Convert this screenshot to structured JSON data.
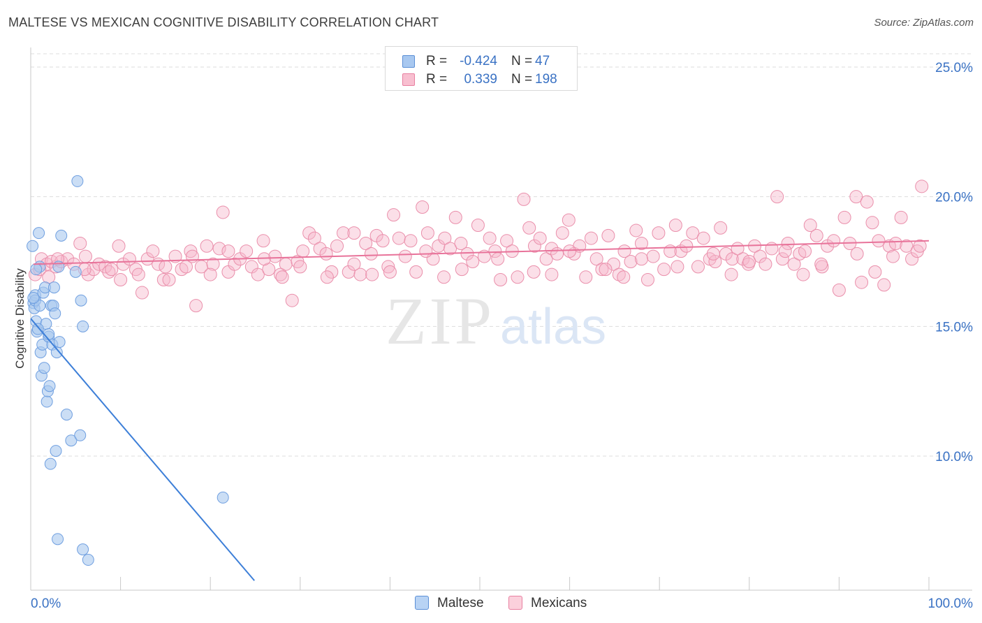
{
  "header": {
    "title": "MALTESE VS MEXICAN COGNITIVE DISABILITY CORRELATION CHART",
    "source": "Source: ZipAtlas.com"
  },
  "watermark": {
    "zip": "ZIP",
    "atlas": "atlas"
  },
  "legend_top": {
    "rows": [
      {
        "r_label": "R =",
        "r_value": "-0.424",
        "n_label": "N =",
        "n_value": "47",
        "color": "#a8c8f0",
        "border": "#5b8fd6"
      },
      {
        "r_label": "R =",
        "r_value": "0.339",
        "n_label": "N =",
        "n_value": "198",
        "color": "#f8bfd0",
        "border": "#e87fa0"
      }
    ]
  },
  "legend_bottom": {
    "items": [
      {
        "label": "Maltese",
        "color": "#b8d3f4",
        "border": "#5b8fd6"
      },
      {
        "label": "Mexicans",
        "color": "#fbd0dc",
        "border": "#e87fa0"
      }
    ]
  },
  "colors": {
    "maltese_fill": "#a9c8ef",
    "maltese_stroke": "#6f9fe0",
    "maltese_line": "#3d7fd8",
    "mexican_fill": "#f6b9cb",
    "mexican_stroke": "#ea8fab",
    "mexican_line": "#e8739a",
    "tick_label": "#3a72c4",
    "grid": "#dddddd"
  },
  "chart_data": {
    "type": "scatter",
    "title": "MALTESE VS MEXICAN COGNITIVE DISABILITY CORRELATION CHART",
    "xlabel": "",
    "ylabel": "Cognitive Disability",
    "xlim": [
      0,
      100
    ],
    "ylim": [
      5,
      25.5
    ],
    "x_tick_labels": [
      "0.0%",
      "100.0%"
    ],
    "y_ticks": [
      10,
      15,
      20,
      25
    ],
    "y_tick_labels": [
      "10.0%",
      "15.0%",
      "20.0%",
      "25.0%"
    ],
    "grid": true,
    "legend_placement": "top-center",
    "series": [
      {
        "name": "Maltese",
        "r": -0.424,
        "n": 47,
        "trend": {
          "x": [
            0,
            24.9
          ],
          "y": [
            15.3,
            5.2
          ]
        },
        "points": [
          [
            0.2,
            18.1
          ],
          [
            0.3,
            15.9
          ],
          [
            0.5,
            16.2
          ],
          [
            0.4,
            15.7
          ],
          [
            0.6,
            15.2
          ],
          [
            0.7,
            14.8
          ],
          [
            0.9,
            18.6
          ],
          [
            1.0,
            17.3
          ],
          [
            1.1,
            14.0
          ],
          [
            1.2,
            13.1
          ],
          [
            1.3,
            14.3
          ],
          [
            1.4,
            16.3
          ],
          [
            1.6,
            16.5
          ],
          [
            1.7,
            15.1
          ],
          [
            1.8,
            12.1
          ],
          [
            1.9,
            12.5
          ],
          [
            2.0,
            14.6
          ],
          [
            2.1,
            12.7
          ],
          [
            2.2,
            9.7
          ],
          [
            2.3,
            15.8
          ],
          [
            2.4,
            14.3
          ],
          [
            2.5,
            15.8
          ],
          [
            2.6,
            16.5
          ],
          [
            2.7,
            15.5
          ],
          [
            2.8,
            10.2
          ],
          [
            2.9,
            14.0
          ],
          [
            3.0,
            6.8
          ],
          [
            3.1,
            17.3
          ],
          [
            3.2,
            14.4
          ],
          [
            3.4,
            18.5
          ],
          [
            4.0,
            11.6
          ],
          [
            4.5,
            10.6
          ],
          [
            5.0,
            17.1
          ],
          [
            5.2,
            20.6
          ],
          [
            5.5,
            10.8
          ],
          [
            5.6,
            16.0
          ],
          [
            5.8,
            15.0
          ],
          [
            5.8,
            6.4
          ],
          [
            6.4,
            6.0
          ],
          [
            0.5,
            16.0
          ],
          [
            0.8,
            14.9
          ],
          [
            1.5,
            13.4
          ],
          [
            1.0,
            15.8
          ],
          [
            0.6,
            17.2
          ],
          [
            2.0,
            14.7
          ],
          [
            21.4,
            8.4
          ],
          [
            0.3,
            16.1
          ]
        ]
      },
      {
        "name": "Mexicans",
        "r": 0.339,
        "n": 198,
        "trend": {
          "x": [
            0.3,
            100
          ],
          "y": [
            17.4,
            18.3
          ]
        },
        "points": [
          [
            0.5,
            17.0
          ],
          [
            1.2,
            17.6
          ],
          [
            1.8,
            17.4
          ],
          [
            2.3,
            17.5
          ],
          [
            2.8,
            17.3
          ],
          [
            3.4,
            17.5
          ],
          [
            4.1,
            17.6
          ],
          [
            4.8,
            17.4
          ],
          [
            5.5,
            18.2
          ],
          [
            6.1,
            17.7
          ],
          [
            6.4,
            17.0
          ],
          [
            7.0,
            17.2
          ],
          [
            7.6,
            17.4
          ],
          [
            8.3,
            17.3
          ],
          [
            8.7,
            17.1
          ],
          [
            9.8,
            18.1
          ],
          [
            10.3,
            17.4
          ],
          [
            11.0,
            17.6
          ],
          [
            11.7,
            17.2
          ],
          [
            12.4,
            16.3
          ],
          [
            13.0,
            17.6
          ],
          [
            13.6,
            17.9
          ],
          [
            14.2,
            17.4
          ],
          [
            14.8,
            16.8
          ],
          [
            15.4,
            16.8
          ],
          [
            16.1,
            17.7
          ],
          [
            16.8,
            17.2
          ],
          [
            17.3,
            17.3
          ],
          [
            17.8,
            17.9
          ],
          [
            18.4,
            15.8
          ],
          [
            19.0,
            17.3
          ],
          [
            19.6,
            18.1
          ],
          [
            20.3,
            17.4
          ],
          [
            21.0,
            18.0
          ],
          [
            21.4,
            19.4
          ],
          [
            22.0,
            17.1
          ],
          [
            22.7,
            17.4
          ],
          [
            23.3,
            17.6
          ],
          [
            24.0,
            17.9
          ],
          [
            24.6,
            17.3
          ],
          [
            25.3,
            17.0
          ],
          [
            25.9,
            18.3
          ],
          [
            26.5,
            17.2
          ],
          [
            27.2,
            17.7
          ],
          [
            27.8,
            17.0
          ],
          [
            28.4,
            17.4
          ],
          [
            29.1,
            16.0
          ],
          [
            29.7,
            17.5
          ],
          [
            30.3,
            17.9
          ],
          [
            31.0,
            18.6
          ],
          [
            31.6,
            18.4
          ],
          [
            32.2,
            18.0
          ],
          [
            32.9,
            17.8
          ],
          [
            33.5,
            17.1
          ],
          [
            34.1,
            18.1
          ],
          [
            34.8,
            18.6
          ],
          [
            35.4,
            17.1
          ],
          [
            36.0,
            18.6
          ],
          [
            36.7,
            17.0
          ],
          [
            37.3,
            18.2
          ],
          [
            37.9,
            17.8
          ],
          [
            38.5,
            18.5
          ],
          [
            39.2,
            18.3
          ],
          [
            39.8,
            17.3
          ],
          [
            40.4,
            19.3
          ],
          [
            41.0,
            18.4
          ],
          [
            41.7,
            17.7
          ],
          [
            42.3,
            18.3
          ],
          [
            42.9,
            17.1
          ],
          [
            43.6,
            19.6
          ],
          [
            44.2,
            18.6
          ],
          [
            44.8,
            17.6
          ],
          [
            45.4,
            18.1
          ],
          [
            46.1,
            18.4
          ],
          [
            46.7,
            18.0
          ],
          [
            47.3,
            19.2
          ],
          [
            47.9,
            18.2
          ],
          [
            48.6,
            17.8
          ],
          [
            49.2,
            17.5
          ],
          [
            49.8,
            18.9
          ],
          [
            50.5,
            17.7
          ],
          [
            51.1,
            18.4
          ],
          [
            51.7,
            17.9
          ],
          [
            52.3,
            16.8
          ],
          [
            53.0,
            18.3
          ],
          [
            53.6,
            17.9
          ],
          [
            54.2,
            16.9
          ],
          [
            54.9,
            19.9
          ],
          [
            55.5,
            18.8
          ],
          [
            56.1,
            18.1
          ],
          [
            56.7,
            18.4
          ],
          [
            57.4,
            17.6
          ],
          [
            58.0,
            18.0
          ],
          [
            58.6,
            17.8
          ],
          [
            59.2,
            18.6
          ],
          [
            59.9,
            19.1
          ],
          [
            60.5,
            17.8
          ],
          [
            61.1,
            18.1
          ],
          [
            61.8,
            16.9
          ],
          [
            62.4,
            18.4
          ],
          [
            63.0,
            17.6
          ],
          [
            63.6,
            17.2
          ],
          [
            64.3,
            18.5
          ],
          [
            64.9,
            17.4
          ],
          [
            65.5,
            17.0
          ],
          [
            66.1,
            17.9
          ],
          [
            66.8,
            17.5
          ],
          [
            67.4,
            18.7
          ],
          [
            68.0,
            18.2
          ],
          [
            68.7,
            16.8
          ],
          [
            69.3,
            17.7
          ],
          [
            69.9,
            18.6
          ],
          [
            70.5,
            17.2
          ],
          [
            71.2,
            17.9
          ],
          [
            71.8,
            18.9
          ],
          [
            72.4,
            17.9
          ],
          [
            73.0,
            18.1
          ],
          [
            73.7,
            18.6
          ],
          [
            74.3,
            17.3
          ],
          [
            74.9,
            18.4
          ],
          [
            75.6,
            17.6
          ],
          [
            76.2,
            17.5
          ],
          [
            76.8,
            18.8
          ],
          [
            77.4,
            17.8
          ],
          [
            78.1,
            17.6
          ],
          [
            78.7,
            18.0
          ],
          [
            79.3,
            17.6
          ],
          [
            79.9,
            17.4
          ],
          [
            80.6,
            18.1
          ],
          [
            81.2,
            17.7
          ],
          [
            81.8,
            17.4
          ],
          [
            82.5,
            18.0
          ],
          [
            83.1,
            20.0
          ],
          [
            83.7,
            17.6
          ],
          [
            84.3,
            18.2
          ],
          [
            85.0,
            17.4
          ],
          [
            85.6,
            17.8
          ],
          [
            86.2,
            17.9
          ],
          [
            86.8,
            18.9
          ],
          [
            87.5,
            18.5
          ],
          [
            88.1,
            17.3
          ],
          [
            88.7,
            18.1
          ],
          [
            89.4,
            18.3
          ],
          [
            90.0,
            16.4
          ],
          [
            90.6,
            19.2
          ],
          [
            91.2,
            18.2
          ],
          [
            91.9,
            20.0
          ],
          [
            92.5,
            16.7
          ],
          [
            93.1,
            19.8
          ],
          [
            93.7,
            19.0
          ],
          [
            94.4,
            18.3
          ],
          [
            95.0,
            16.6
          ],
          [
            95.6,
            18.1
          ],
          [
            96.3,
            18.2
          ],
          [
            96.9,
            19.2
          ],
          [
            97.5,
            18.1
          ],
          [
            98.1,
            17.6
          ],
          [
            98.7,
            17.9
          ],
          [
            99.2,
            20.4
          ],
          [
            1.0,
            17.2
          ],
          [
            2.0,
            16.9
          ],
          [
            3.0,
            17.6
          ],
          [
            6.0,
            17.2
          ],
          [
            9.0,
            17.2
          ],
          [
            12.0,
            17.0
          ],
          [
            15.0,
            17.3
          ],
          [
            18.0,
            17.7
          ],
          [
            22.0,
            17.9
          ],
          [
            26.0,
            17.6
          ],
          [
            30.0,
            17.3
          ],
          [
            33.0,
            16.9
          ],
          [
            36.0,
            17.4
          ],
          [
            40.0,
            17.1
          ],
          [
            44.0,
            17.9
          ],
          [
            48.0,
            17.2
          ],
          [
            52.0,
            17.6
          ],
          [
            56.0,
            17.1
          ],
          [
            60.0,
            17.9
          ],
          [
            64.0,
            17.2
          ],
          [
            68.0,
            17.6
          ],
          [
            72.0,
            17.3
          ],
          [
            76.0,
            17.8
          ],
          [
            80.0,
            17.5
          ],
          [
            84.0,
            17.9
          ],
          [
            88.0,
            17.4
          ],
          [
            92.0,
            17.8
          ],
          [
            96.0,
            17.7
          ],
          [
            99.0,
            18.1
          ],
          [
            10.0,
            16.8
          ],
          [
            20.0,
            17.0
          ],
          [
            28.0,
            16.9
          ],
          [
            38.0,
            17.0
          ],
          [
            46.0,
            16.9
          ],
          [
            58.0,
            17.0
          ],
          [
            66.0,
            16.9
          ],
          [
            78.0,
            17.0
          ],
          [
            86.0,
            17.0
          ],
          [
            94.0,
            17.1
          ]
        ]
      }
    ]
  }
}
